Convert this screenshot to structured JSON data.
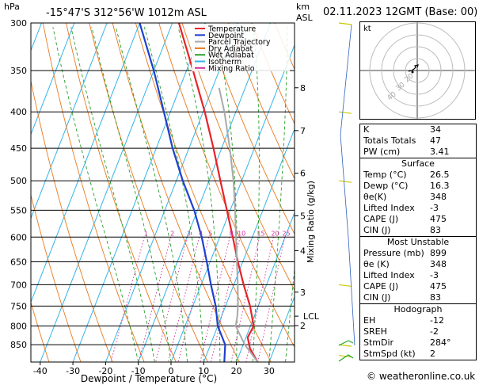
{
  "header": {
    "hpa_label": "hPa",
    "location": "-15°47'S  312°56'W  1012m  ASL",
    "km_label": "km",
    "asl_label": "ASL",
    "datetime": "02.11.2023  12GMT  (Base: 00)"
  },
  "chart_data": {
    "type": "line",
    "xlabel": "Dewpoint / Temperature (°C)",
    "ylabel": "Mixing Ratio (g/kg)",
    "x_ticks": [
      -40,
      -30,
      -20,
      -10,
      0,
      10,
      20,
      30
    ],
    "pressure_levels": [
      300,
      350,
      400,
      450,
      500,
      550,
      600,
      650,
      700,
      750,
      800,
      850
    ],
    "ylim_hpa": [
      300,
      899
    ],
    "km_ticks": [
      {
        "label": "8",
        "p": 370
      },
      {
        "label": "7",
        "p": 425
      },
      {
        "label": "6",
        "p": 488
      },
      {
        "label": "5",
        "p": 560
      },
      {
        "label": "4",
        "p": 627
      },
      {
        "label": "3",
        "p": 717
      },
      {
        "label": "2",
        "p": 799
      },
      {
        "label": "LCL",
        "p": 775
      }
    ],
    "mixing_ratio_labels": [
      "1",
      "2",
      "3",
      "4",
      "5",
      "8",
      "10",
      "15",
      "20",
      "25"
    ],
    "mixing_ratio_values": [
      1,
      2,
      3,
      4,
      5,
      8,
      10,
      15,
      20,
      25
    ],
    "legend": [
      {
        "name": "Temperature",
        "color": "#e8222a"
      },
      {
        "name": "Dewpoint",
        "color": "#1f3fd0"
      },
      {
        "name": "Parcel Trajectory",
        "color": "#aaaaaa"
      },
      {
        "name": "Dry Adiabat",
        "color": "#e87a1e"
      },
      {
        "name": "Wet Adiabat",
        "color": "#2ca02c"
      },
      {
        "name": "Isotherm",
        "color": "#34b4e8"
      },
      {
        "name": "Mixing Ratio",
        "color": "#d0309c"
      }
    ],
    "series": [
      {
        "name": "Temperature",
        "color": "#e8222a",
        "points": [
          [
            899,
            26.5
          ],
          [
            860,
            22.5
          ],
          [
            830,
            20.5
          ],
          [
            800,
            21.0
          ],
          [
            750,
            17.5
          ],
          [
            700,
            13.0
          ],
          [
            650,
            8.5
          ],
          [
            600,
            4.0
          ],
          [
            550,
            -1.0
          ],
          [
            500,
            -6.5
          ],
          [
            450,
            -12.5
          ],
          [
            400,
            -19.5
          ],
          [
            350,
            -28.0
          ],
          [
            300,
            -38.0
          ]
        ]
      },
      {
        "name": "Dewpoint",
        "color": "#1f3fd0",
        "points": [
          [
            899,
            16.3
          ],
          [
            850,
            14.5
          ],
          [
            800,
            10.0
          ],
          [
            750,
            7.0
          ],
          [
            700,
            3.0
          ],
          [
            650,
            -1.0
          ],
          [
            600,
            -5.5
          ],
          [
            550,
            -11.0
          ],
          [
            500,
            -18.0
          ],
          [
            450,
            -25.0
          ],
          [
            400,
            -32.0
          ],
          [
            350,
            -40.0
          ],
          [
            300,
            -50.0
          ]
        ]
      },
      {
        "name": "Parcel Trajectory",
        "color": "#aaaaaa",
        "points": [
          [
            899,
            26.5
          ],
          [
            850,
            20.5
          ],
          [
            800,
            15.5
          ],
          [
            775,
            14.8
          ],
          [
            750,
            13.8
          ],
          [
            700,
            11.2
          ],
          [
            650,
            8.2
          ],
          [
            600,
            5.0
          ],
          [
            550,
            1.5
          ],
          [
            500,
            -2.5
          ],
          [
            450,
            -7.5
          ],
          [
            400,
            -13.5
          ],
          [
            370,
            -18.0
          ]
        ]
      }
    ]
  },
  "hodograph": {
    "label": "kt",
    "ring_labels": [
      "40",
      "30",
      "20"
    ]
  },
  "indices": {
    "rows1": [
      {
        "label": "K",
        "value": "34"
      },
      {
        "label": "Totals Totals",
        "value": "47"
      },
      {
        "label": "PW (cm)",
        "value": "3.41"
      }
    ],
    "surface_title": "Surface",
    "surface": [
      {
        "label": "Temp (°C)",
        "value": "26.5"
      },
      {
        "label": "Dewp (°C)",
        "value": "16.3"
      },
      {
        "label": "θe(K)",
        "value": "348"
      },
      {
        "label": "Lifted Index",
        "value": "-3"
      },
      {
        "label": "CAPE (J)",
        "value": "475"
      },
      {
        "label": "CIN (J)",
        "value": "83"
      }
    ],
    "unstable_title": "Most Unstable",
    "unstable": [
      {
        "label": "Pressure (mb)",
        "value": "899"
      },
      {
        "label": "θe (K)",
        "value": "348"
      },
      {
        "label": "Lifted Index",
        "value": "-3"
      },
      {
        "label": "CAPE (J)",
        "value": "475"
      },
      {
        "label": "CIN (J)",
        "value": "83"
      }
    ],
    "hodo_title": "Hodograph",
    "hodo": [
      {
        "label": "EH",
        "value": "-12"
      },
      {
        "label": "SREH",
        "value": "-2"
      },
      {
        "label": "StmDir",
        "value": "284°"
      },
      {
        "label": "StmSpd (kt)",
        "value": "2"
      }
    ]
  },
  "credit": "© weatheronline.co.uk"
}
